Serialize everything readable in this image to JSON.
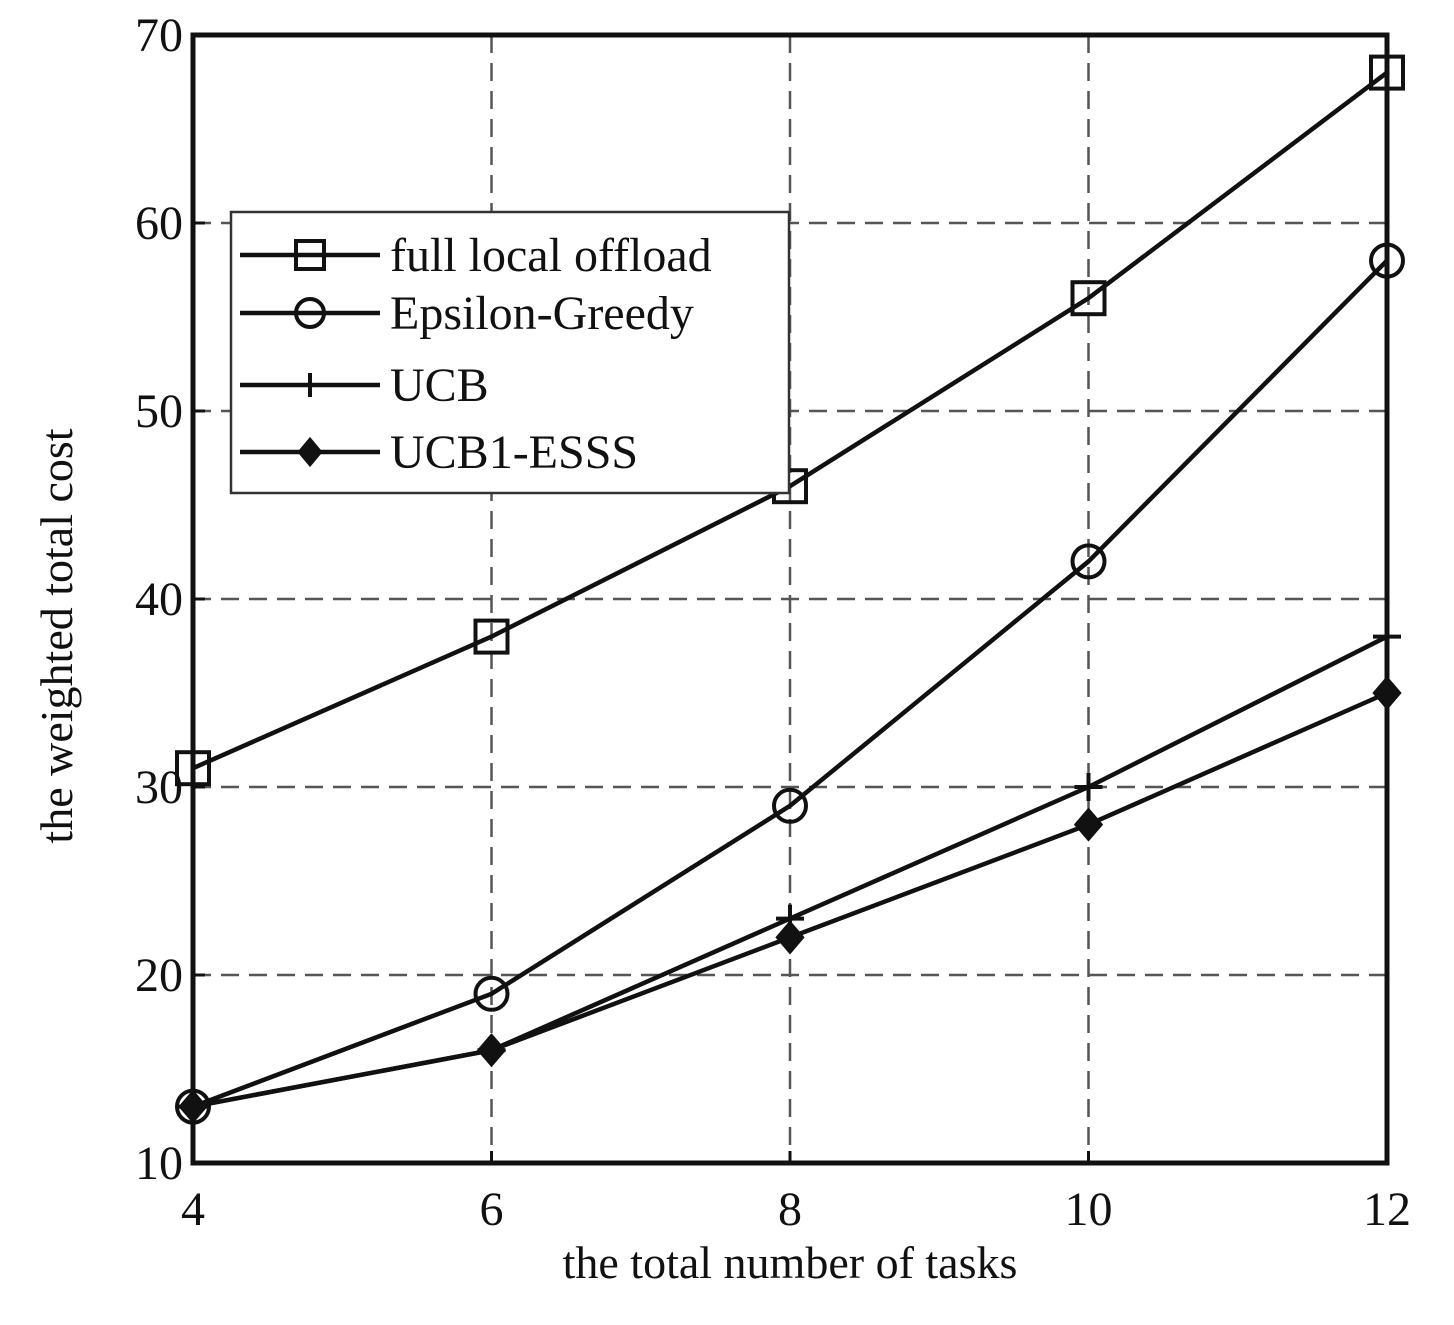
{
  "chart_data": {
    "type": "line",
    "x_label": "the total number of tasks",
    "y_label": "the weighted total cost",
    "x": [
      4,
      6,
      8,
      10,
      12
    ],
    "series": [
      {
        "name": "full local offload",
        "color": "#111111",
        "marker": "square",
        "values": [
          31,
          38,
          46,
          56,
          68
        ]
      },
      {
        "name": "Epsilon-Greedy",
        "color": "#111111",
        "marker": "circle",
        "values": [
          13,
          19,
          29,
          42,
          58
        ]
      },
      {
        "name": "UCB",
        "color": "#111111",
        "marker": "plus",
        "values": [
          13,
          16,
          23,
          30,
          38
        ]
      },
      {
        "name": "UCB1-ESSS",
        "color": "#111111",
        "marker": "diamond",
        "values": [
          13,
          16,
          22,
          28,
          35
        ]
      }
    ],
    "xlim": [
      4,
      12
    ],
    "xticks": [
      4,
      6,
      8,
      10,
      12
    ],
    "ylim": [
      10,
      70
    ],
    "yticks": [
      10,
      20,
      30,
      40,
      50,
      60,
      70
    ],
    "grid": true,
    "legend": "upper left"
  }
}
